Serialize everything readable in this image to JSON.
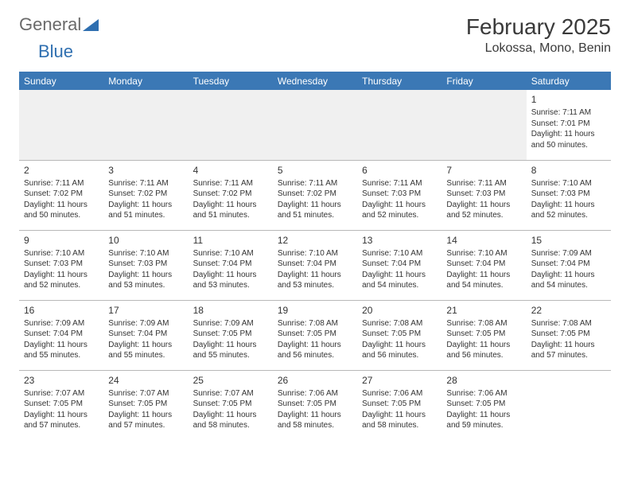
{
  "logo": {
    "general": "General",
    "blue": "Blue"
  },
  "header": {
    "month_title": "February 2025",
    "location": "Lokossa, Mono, Benin"
  },
  "weekdays": [
    "Sunday",
    "Monday",
    "Tuesday",
    "Wednesday",
    "Thursday",
    "Friday",
    "Saturday"
  ],
  "colors": {
    "header_bg": "#3b78b5",
    "header_text": "#ffffff",
    "logo_blue": "#2f6fb0",
    "logo_gray": "#6a6a6a",
    "cell_border": "#b8b8b8",
    "empty_bg": "#f0f0f0"
  },
  "days": {
    "1": {
      "sunrise": "Sunrise: 7:11 AM",
      "sunset": "Sunset: 7:01 PM",
      "daylight": "Daylight: 11 hours and 50 minutes."
    },
    "2": {
      "sunrise": "Sunrise: 7:11 AM",
      "sunset": "Sunset: 7:02 PM",
      "daylight": "Daylight: 11 hours and 50 minutes."
    },
    "3": {
      "sunrise": "Sunrise: 7:11 AM",
      "sunset": "Sunset: 7:02 PM",
      "daylight": "Daylight: 11 hours and 51 minutes."
    },
    "4": {
      "sunrise": "Sunrise: 7:11 AM",
      "sunset": "Sunset: 7:02 PM",
      "daylight": "Daylight: 11 hours and 51 minutes."
    },
    "5": {
      "sunrise": "Sunrise: 7:11 AM",
      "sunset": "Sunset: 7:02 PM",
      "daylight": "Daylight: 11 hours and 51 minutes."
    },
    "6": {
      "sunrise": "Sunrise: 7:11 AM",
      "sunset": "Sunset: 7:03 PM",
      "daylight": "Daylight: 11 hours and 52 minutes."
    },
    "7": {
      "sunrise": "Sunrise: 7:11 AM",
      "sunset": "Sunset: 7:03 PM",
      "daylight": "Daylight: 11 hours and 52 minutes."
    },
    "8": {
      "sunrise": "Sunrise: 7:10 AM",
      "sunset": "Sunset: 7:03 PM",
      "daylight": "Daylight: 11 hours and 52 minutes."
    },
    "9": {
      "sunrise": "Sunrise: 7:10 AM",
      "sunset": "Sunset: 7:03 PM",
      "daylight": "Daylight: 11 hours and 52 minutes."
    },
    "10": {
      "sunrise": "Sunrise: 7:10 AM",
      "sunset": "Sunset: 7:03 PM",
      "daylight": "Daylight: 11 hours and 53 minutes."
    },
    "11": {
      "sunrise": "Sunrise: 7:10 AM",
      "sunset": "Sunset: 7:04 PM",
      "daylight": "Daylight: 11 hours and 53 minutes."
    },
    "12": {
      "sunrise": "Sunrise: 7:10 AM",
      "sunset": "Sunset: 7:04 PM",
      "daylight": "Daylight: 11 hours and 53 minutes."
    },
    "13": {
      "sunrise": "Sunrise: 7:10 AM",
      "sunset": "Sunset: 7:04 PM",
      "daylight": "Daylight: 11 hours and 54 minutes."
    },
    "14": {
      "sunrise": "Sunrise: 7:10 AM",
      "sunset": "Sunset: 7:04 PM",
      "daylight": "Daylight: 11 hours and 54 minutes."
    },
    "15": {
      "sunrise": "Sunrise: 7:09 AM",
      "sunset": "Sunset: 7:04 PM",
      "daylight": "Daylight: 11 hours and 54 minutes."
    },
    "16": {
      "sunrise": "Sunrise: 7:09 AM",
      "sunset": "Sunset: 7:04 PM",
      "daylight": "Daylight: 11 hours and 55 minutes."
    },
    "17": {
      "sunrise": "Sunrise: 7:09 AM",
      "sunset": "Sunset: 7:04 PM",
      "daylight": "Daylight: 11 hours and 55 minutes."
    },
    "18": {
      "sunrise": "Sunrise: 7:09 AM",
      "sunset": "Sunset: 7:05 PM",
      "daylight": "Daylight: 11 hours and 55 minutes."
    },
    "19": {
      "sunrise": "Sunrise: 7:08 AM",
      "sunset": "Sunset: 7:05 PM",
      "daylight": "Daylight: 11 hours and 56 minutes."
    },
    "20": {
      "sunrise": "Sunrise: 7:08 AM",
      "sunset": "Sunset: 7:05 PM",
      "daylight": "Daylight: 11 hours and 56 minutes."
    },
    "21": {
      "sunrise": "Sunrise: 7:08 AM",
      "sunset": "Sunset: 7:05 PM",
      "daylight": "Daylight: 11 hours and 56 minutes."
    },
    "22": {
      "sunrise": "Sunrise: 7:08 AM",
      "sunset": "Sunset: 7:05 PM",
      "daylight": "Daylight: 11 hours and 57 minutes."
    },
    "23": {
      "sunrise": "Sunrise: 7:07 AM",
      "sunset": "Sunset: 7:05 PM",
      "daylight": "Daylight: 11 hours and 57 minutes."
    },
    "24": {
      "sunrise": "Sunrise: 7:07 AM",
      "sunset": "Sunset: 7:05 PM",
      "daylight": "Daylight: 11 hours and 57 minutes."
    },
    "25": {
      "sunrise": "Sunrise: 7:07 AM",
      "sunset": "Sunset: 7:05 PM",
      "daylight": "Daylight: 11 hours and 58 minutes."
    },
    "26": {
      "sunrise": "Sunrise: 7:06 AM",
      "sunset": "Sunset: 7:05 PM",
      "daylight": "Daylight: 11 hours and 58 minutes."
    },
    "27": {
      "sunrise": "Sunrise: 7:06 AM",
      "sunset": "Sunset: 7:05 PM",
      "daylight": "Daylight: 11 hours and 58 minutes."
    },
    "28": {
      "sunrise": "Sunrise: 7:06 AM",
      "sunset": "Sunset: 7:05 PM",
      "daylight": "Daylight: 11 hours and 59 minutes."
    }
  },
  "grid": [
    [
      null,
      null,
      null,
      null,
      null,
      null,
      "1"
    ],
    [
      "2",
      "3",
      "4",
      "5",
      "6",
      "7",
      "8"
    ],
    [
      "9",
      "10",
      "11",
      "12",
      "13",
      "14",
      "15"
    ],
    [
      "16",
      "17",
      "18",
      "19",
      "20",
      "21",
      "22"
    ],
    [
      "23",
      "24",
      "25",
      "26",
      "27",
      "28",
      null
    ]
  ]
}
